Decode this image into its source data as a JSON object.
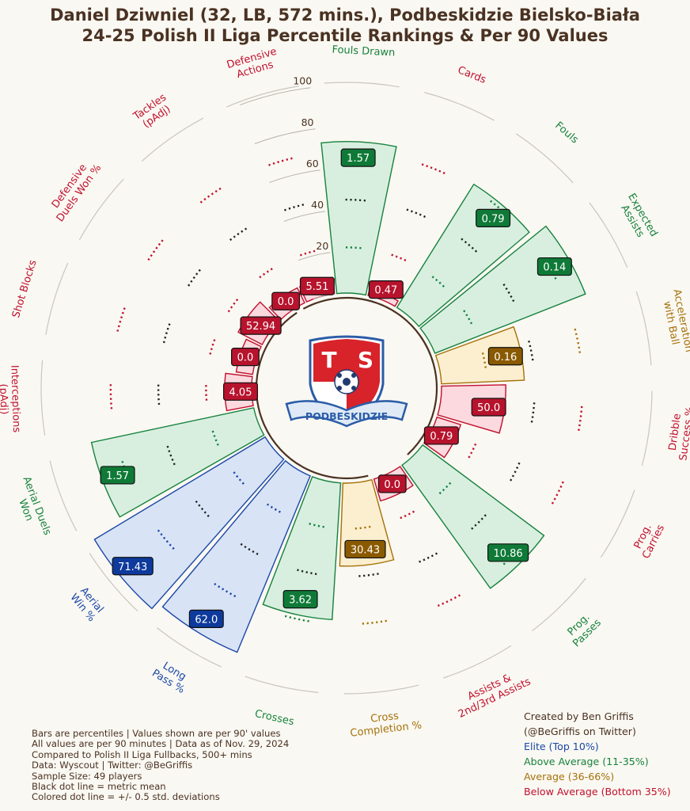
{
  "header": {
    "title_line1": "Daniel Dziwniel (32, LB, 572 mins.), Podbeskidzie Bielsko-Biała",
    "title_line2": "24-25 Polish II Liga Percentile Rankings & Per 90 Values"
  },
  "colors": {
    "elite": "#1a47a8",
    "above": "#16823d",
    "average": "#a5710a",
    "below": "#c0102e",
    "text": "#4a3222",
    "background": "#faf8f2"
  },
  "logo": {
    "letters_left": "T",
    "letters_right": "S",
    "ribbon_text": "PODBESKIDZIE",
    "icon": "club-crest-icon"
  },
  "chart_data": {
    "type": "radial-bar",
    "r_ticks": [
      0,
      20,
      40,
      60,
      80,
      100
    ],
    "r_range": [
      0,
      100
    ],
    "metrics": [
      {
        "label": "Fouls Drawn",
        "percentile": 73,
        "value": "1.57",
        "tier": "above"
      },
      {
        "label": "Cards",
        "percentile": 3,
        "value": "0.47",
        "tier": "below"
      },
      {
        "label": "Fouls",
        "percentile": 70,
        "value": "0.79",
        "tier": "above"
      },
      {
        "label": "Expected\nAssists",
        "percentile": 78,
        "value": "0.14",
        "tier": "above"
      },
      {
        "label": "Acceleration\nwith Ball",
        "percentile": 40,
        "value": "0.16",
        "tier": "average"
      },
      {
        "label": "Dribble\nSuccess %",
        "percentile": 31,
        "value": "50.0",
        "tier": "below"
      },
      {
        "label": "Prog.\nCarries",
        "percentile": 12,
        "value": "0.79",
        "tier": "below"
      },
      {
        "label": "Prog.\nPasses",
        "percentile": 73,
        "value": "10.86",
        "tier": "above"
      },
      {
        "label": "Assists &\n2nd/3rd Assists",
        "percentile": 11,
        "value": "0.0",
        "tier": "below"
      },
      {
        "label": "Cross\nCompletion %",
        "percentile": 40,
        "value": "30.43",
        "tier": "average"
      },
      {
        "label": "Crosses",
        "percentile": 66,
        "value": "3.62",
        "tier": "above"
      },
      {
        "label": "Long\nPass %",
        "percentile": 92,
        "value": "62.0",
        "tier": "elite"
      },
      {
        "label": "Aerial\nWin %",
        "percentile": 96,
        "value": "71.43",
        "tier": "elite"
      },
      {
        "label": "Aerial Duels\nWon",
        "percentile": 80,
        "value": "1.57",
        "tier": "above"
      },
      {
        "label": "Interceptions\n(pAdj)",
        "percentile": 13,
        "value": "4.05",
        "tier": "below"
      },
      {
        "label": "Shot Blocks",
        "percentile": 8,
        "value": "0.0",
        "tier": "below"
      },
      {
        "label": "Defensive\nDuels Won %",
        "percentile": 13,
        "value": "52.94",
        "tier": "below"
      },
      {
        "label": "Tackles\n(pAdj)",
        "percentile": 8,
        "value": "0.0",
        "tier": "below"
      },
      {
        "label": "Defensive\nActions",
        "percentile": 8,
        "value": "5.51",
        "tier": "below"
      }
    ]
  },
  "notes": [
    "Bars are percentiles | Values shown are per 90' values",
    "All values are per 90 minutes | Data as of Nov. 29, 2024",
    "Compared to Polish II Liga Fullbacks, 500+ mins",
    "Data: Wyscout | Twitter: @BeGriffis",
    "Sample Size: 49 players",
    "Black dot line = metric mean",
    "Colored dot line = +/- 0.5 std. deviations"
  ],
  "credits": {
    "line1": "Created by Ben Griffis",
    "line2": "(@BeGriffis on Twitter)",
    "legend": [
      {
        "label": "Elite (Top 10%)",
        "tier": "elite"
      },
      {
        "label": "Above Average (11-35%)",
        "tier": "above"
      },
      {
        "label": "Average (36-66%)",
        "tier": "average"
      },
      {
        "label": "Below Average (Bottom 35%)",
        "tier": "below"
      }
    ]
  }
}
